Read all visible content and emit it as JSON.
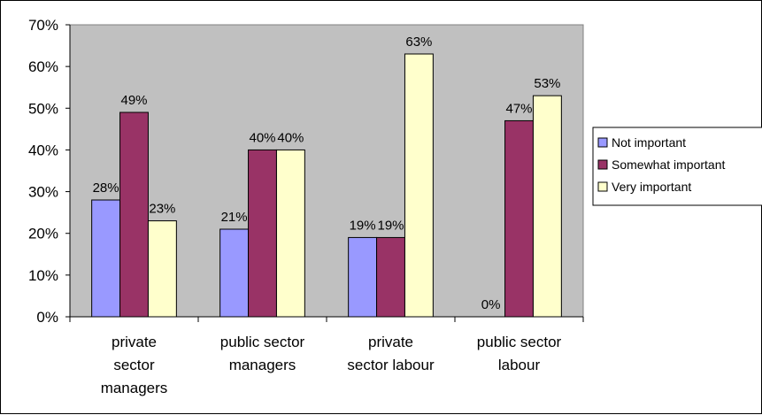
{
  "chart_data": {
    "type": "bar",
    "categories": [
      [
        "private",
        "sector",
        "managers"
      ],
      [
        "public sector",
        "managers"
      ],
      [
        "private",
        "sector labour"
      ],
      [
        "public sector",
        "labour"
      ]
    ],
    "series": [
      {
        "name": "Not important",
        "color": "#9999ff",
        "values": [
          28,
          21,
          19,
          0
        ],
        "labels": [
          "28%",
          "21%",
          "19%",
          "0%"
        ]
      },
      {
        "name": "Somewhat important",
        "color": "#993366",
        "values": [
          49,
          40,
          19,
          47
        ],
        "labels": [
          "49%",
          "40%",
          "19%",
          "47%"
        ]
      },
      {
        "name": "Very important",
        "color": "#ffffcc",
        "values": [
          23,
          40,
          63,
          53
        ],
        "labels": [
          "23%",
          "40%",
          "63%",
          "53%"
        ]
      }
    ],
    "ylim": [
      0,
      70
    ],
    "yticks": [
      "0%",
      "10%",
      "20%",
      "30%",
      "40%",
      "50%",
      "60%",
      "70%"
    ],
    "plot_background": "#c0c0c0",
    "legend_position": "right",
    "title": "",
    "xlabel": "",
    "ylabel": ""
  }
}
